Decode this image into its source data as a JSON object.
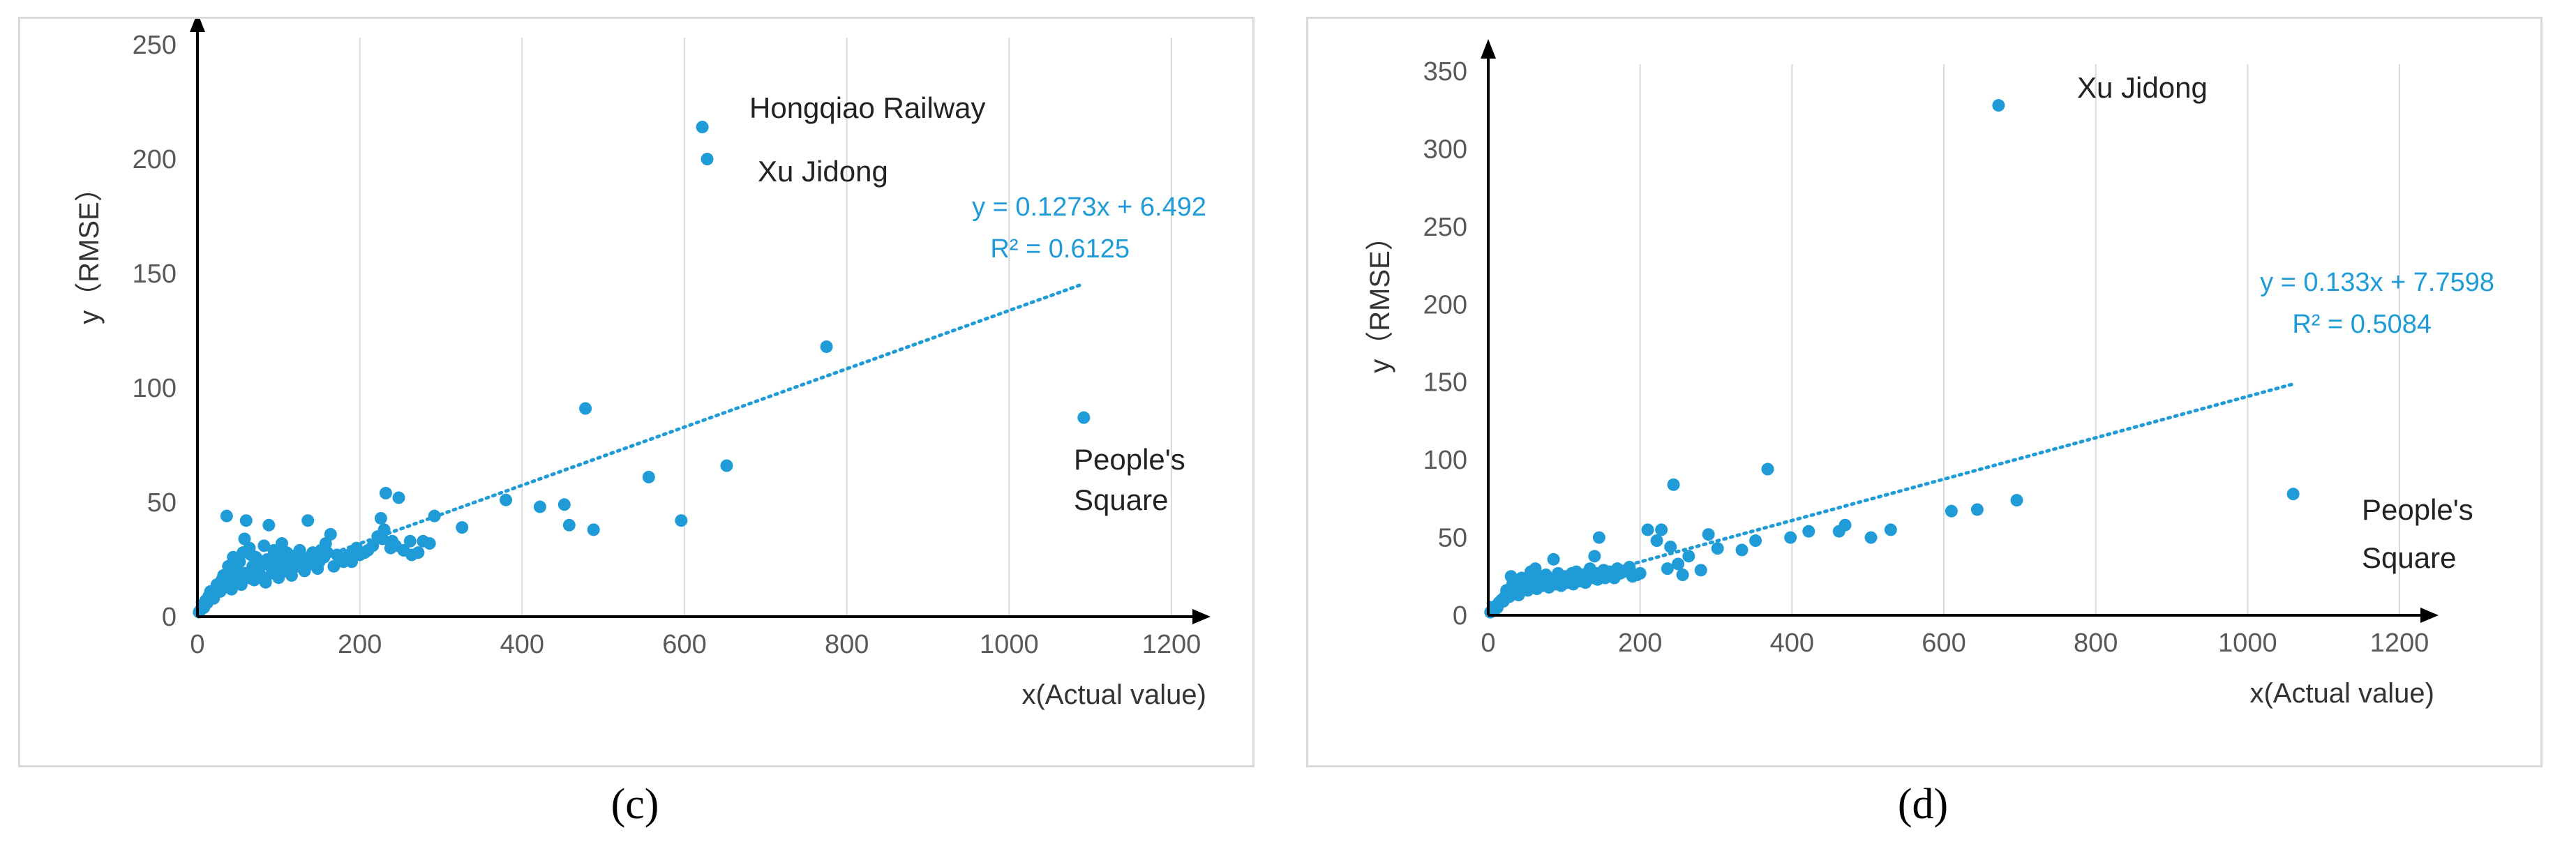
{
  "figure": {
    "caption_c": "(c)",
    "caption_d": "(d)"
  },
  "chart_data": [
    {
      "type": "scatter",
      "panel": "c",
      "ylabel": "y（RMSE）",
      "xlabel": "x(Actual value)",
      "xlim": [
        0,
        1200
      ],
      "ylim": [
        0,
        250
      ],
      "xticks": [
        "0",
        "200",
        "400",
        "600",
        "800",
        "1000",
        "1200"
      ],
      "yticks": [
        "0",
        "50",
        "100",
        "150",
        "200",
        "250"
      ],
      "point_color": "#1f9bd7",
      "trendline": {
        "slope": 0.1273,
        "intercept": 6.492,
        "x_range": [
          0,
          1090
        ],
        "equation": "y = 0.1273x + 6.492",
        "r2": "R² = 0.6125"
      },
      "annotations": [
        {
          "text": "Hongqiao Railway",
          "x": 622,
          "y": 214
        },
        {
          "text": "Xu Jidong",
          "x": 628,
          "y": 200
        },
        {
          "text": "People's",
          "x": 1092,
          "y": 87
        },
        {
          "text": "Square",
          "x": 1092,
          "y": 87
        }
      ],
      "points": [
        [
          622,
          214
        ],
        [
          628,
          200
        ],
        [
          775,
          118
        ],
        [
          1092,
          87
        ],
        [
          478,
          91
        ],
        [
          652,
          66
        ],
        [
          556,
          61
        ],
        [
          596,
          42
        ],
        [
          488,
          38
        ],
        [
          458,
          40
        ],
        [
          452,
          49
        ],
        [
          422,
          48
        ],
        [
          380,
          51
        ],
        [
          326,
          39
        ],
        [
          292,
          44
        ],
        [
          278,
          33
        ],
        [
          272,
          28
        ],
        [
          262,
          33
        ],
        [
          254,
          29
        ],
        [
          248,
          52
        ],
        [
          232,
          54
        ],
        [
          226,
          43
        ],
        [
          238,
          30
        ],
        [
          244,
          31
        ],
        [
          228,
          34
        ],
        [
          210,
          29
        ],
        [
          200,
          27
        ],
        [
          186,
          27
        ],
        [
          180,
          24
        ],
        [
          172,
          27
        ],
        [
          164,
          36
        ],
        [
          158,
          32
        ],
        [
          150,
          24
        ],
        [
          142,
          28
        ],
        [
          136,
          42
        ],
        [
          126,
          29
        ],
        [
          118,
          26
        ],
        [
          112,
          21
        ],
        [
          106,
          27
        ],
        [
          98,
          22
        ],
        [
          88,
          40
        ],
        [
          80,
          24
        ],
        [
          74,
          20
        ],
        [
          66,
          27
        ],
        [
          60,
          42
        ],
        [
          58,
          34
        ],
        [
          52,
          24
        ],
        [
          46,
          21
        ],
        [
          40,
          18
        ],
        [
          36,
          44
        ],
        [
          30,
          16
        ],
        [
          26,
          13
        ],
        [
          22,
          12
        ],
        [
          18,
          10
        ],
        [
          14,
          9
        ],
        [
          10,
          7
        ],
        [
          6,
          5
        ],
        [
          4,
          3
        ],
        [
          2,
          2
        ],
        [
          12,
          6
        ],
        [
          20,
          8
        ],
        [
          28,
          11
        ],
        [
          34,
          14
        ],
        [
          42,
          12
        ],
        [
          48,
          16
        ],
        [
          54,
          14
        ],
        [
          62,
          17
        ],
        [
          70,
          16
        ],
        [
          78,
          18
        ],
        [
          84,
          15
        ],
        [
          92,
          19
        ],
        [
          100,
          17
        ],
        [
          108,
          20
        ],
        [
          116,
          18
        ],
        [
          124,
          22
        ],
        [
          132,
          20
        ],
        [
          140,
          23
        ],
        [
          148,
          21
        ],
        [
          156,
          26
        ],
        [
          168,
          22
        ],
        [
          176,
          25
        ],
        [
          190,
          24
        ],
        [
          196,
          30
        ],
        [
          44,
          26
        ],
        [
          56,
          28
        ],
        [
          64,
          30
        ],
        [
          72,
          26
        ],
        [
          82,
          31
        ],
        [
          94,
          29
        ],
        [
          104,
          32
        ],
        [
          114,
          24
        ],
        [
          122,
          27
        ],
        [
          130,
          25
        ],
        [
          38,
          22
        ],
        [
          50,
          20
        ],
        [
          68,
          22
        ],
        [
          86,
          25
        ],
        [
          96,
          24
        ],
        [
          110,
          28
        ],
        [
          138,
          26
        ],
        [
          152,
          29
        ],
        [
          160,
          28
        ],
        [
          16,
          11
        ],
        [
          24,
          14
        ],
        [
          32,
          18
        ],
        [
          46,
          15
        ],
        [
          58,
          19
        ],
        [
          76,
          21
        ],
        [
          90,
          22
        ],
        [
          102,
          23
        ],
        [
          120,
          24
        ],
        [
          144,
          25
        ],
        [
          184,
          26
        ],
        [
          206,
          28
        ],
        [
          216,
          31
        ],
        [
          222,
          35
        ],
        [
          264,
          27
        ],
        [
          230,
          38
        ],
        [
          240,
          33
        ],
        [
          286,
          32
        ],
        [
          8,
          4
        ]
      ]
    },
    {
      "type": "scatter",
      "panel": "d",
      "ylabel": "y（RMSE）",
      "xlabel": "x(Actual value)",
      "xlim": [
        0,
        1200
      ],
      "ylim": [
        0,
        350
      ],
      "xticks": [
        "0",
        "200",
        "400",
        "600",
        "800",
        "1000",
        "1200"
      ],
      "yticks": [
        "0",
        "50",
        "100",
        "150",
        "200",
        "250",
        "300",
        "350"
      ],
      "point_color": "#1f9bd7",
      "trendline": {
        "slope": 0.133,
        "intercept": 7.7598,
        "x_range": [
          0,
          1060
        ],
        "equation": "y = 0.133x + 7.7598",
        "r2": "R² = 0.5084"
      },
      "annotations": [
        {
          "text": "Xu Jidong",
          "x": 672,
          "y": 328
        },
        {
          "text": "People's",
          "x": 1060,
          "y": 78
        },
        {
          "text": "Square",
          "x": 1060,
          "y": 78
        }
      ],
      "points": [
        [
          672,
          328
        ],
        [
          1060,
          78
        ],
        [
          696,
          74
        ],
        [
          644,
          68
        ],
        [
          610,
          67
        ],
        [
          530,
          55
        ],
        [
          504,
          50
        ],
        [
          470,
          58
        ],
        [
          462,
          54
        ],
        [
          422,
          54
        ],
        [
          398,
          50
        ],
        [
          368,
          94
        ],
        [
          352,
          48
        ],
        [
          334,
          42
        ],
        [
          302,
          43
        ],
        [
          290,
          52
        ],
        [
          280,
          29
        ],
        [
          264,
          38
        ],
        [
          256,
          26
        ],
        [
          250,
          33
        ],
        [
          244,
          84
        ],
        [
          240,
          44
        ],
        [
          236,
          30
        ],
        [
          228,
          55
        ],
        [
          222,
          48
        ],
        [
          210,
          55
        ],
        [
          196,
          26
        ],
        [
          186,
          31
        ],
        [
          178,
          28
        ],
        [
          170,
          30
        ],
        [
          162,
          25
        ],
        [
          156,
          27
        ],
        [
          146,
          50
        ],
        [
          140,
          38
        ],
        [
          134,
          30
        ],
        [
          126,
          25
        ],
        [
          118,
          23
        ],
        [
          110,
          27
        ],
        [
          102,
          22
        ],
        [
          94,
          24
        ],
        [
          86,
          36
        ],
        [
          78,
          21
        ],
        [
          70,
          25
        ],
        [
          62,
          30
        ],
        [
          56,
          28
        ],
        [
          48,
          20
        ],
        [
          42,
          19
        ],
        [
          36,
          17
        ],
        [
          30,
          25
        ],
        [
          26,
          14
        ],
        [
          22,
          12
        ],
        [
          18,
          10
        ],
        [
          14,
          8
        ],
        [
          10,
          6
        ],
        [
          6,
          4
        ],
        [
          3,
          2
        ],
        [
          12,
          5
        ],
        [
          20,
          9
        ],
        [
          28,
          12
        ],
        [
          34,
          15
        ],
        [
          40,
          13
        ],
        [
          46,
          17
        ],
        [
          52,
          16
        ],
        [
          58,
          18
        ],
        [
          64,
          17
        ],
        [
          72,
          19
        ],
        [
          80,
          18
        ],
        [
          88,
          20
        ],
        [
          96,
          19
        ],
        [
          104,
          21
        ],
        [
          112,
          20
        ],
        [
          120,
          22
        ],
        [
          128,
          21
        ],
        [
          136,
          24
        ],
        [
          144,
          23
        ],
        [
          150,
          26
        ],
        [
          166,
          24
        ],
        [
          174,
          27
        ],
        [
          190,
          25
        ],
        [
          44,
          24
        ],
        [
          54,
          22
        ],
        [
          66,
          23
        ],
        [
          76,
          26
        ],
        [
          84,
          23
        ],
        [
          92,
          27
        ],
        [
          100,
          25
        ],
        [
          108,
          24
        ],
        [
          116,
          28
        ],
        [
          124,
          26
        ],
        [
          132,
          28
        ],
        [
          142,
          27
        ],
        [
          152,
          29
        ],
        [
          160,
          28
        ],
        [
          24,
          16
        ],
        [
          32,
          20
        ],
        [
          38,
          18
        ],
        [
          50,
          21
        ],
        [
          60,
          20
        ],
        [
          74,
          22
        ],
        [
          90,
          21
        ],
        [
          106,
          23
        ],
        [
          122,
          24
        ],
        [
          138,
          25
        ],
        [
          154,
          24
        ],
        [
          182,
          29
        ],
        [
          200,
          27
        ],
        [
          16,
          9
        ],
        [
          8,
          3
        ]
      ]
    }
  ]
}
